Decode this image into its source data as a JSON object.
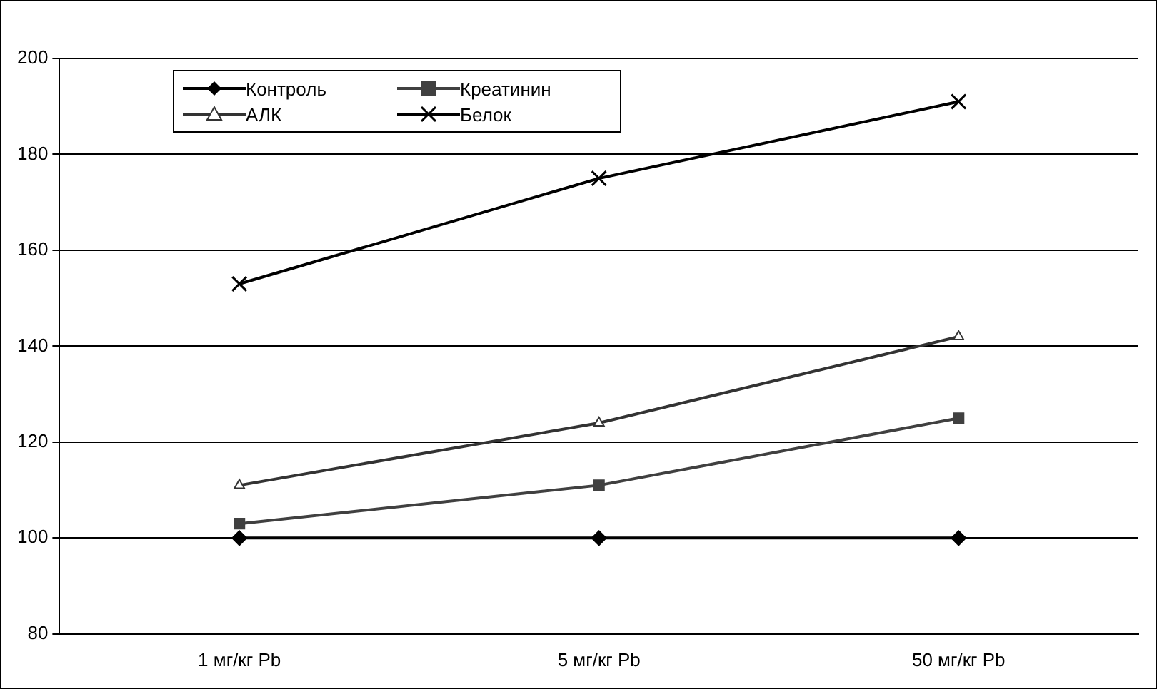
{
  "chart_data": {
    "type": "line",
    "categories": [
      "1 мг/кг Pb",
      "5 мг/кг Pb",
      "50 мг/кг Pb"
    ],
    "series": [
      {
        "name": "Контроль",
        "color": "#000000",
        "marker": "diamond",
        "values": [
          100,
          100,
          100
        ]
      },
      {
        "name": "Креатинин",
        "color": "#404040",
        "marker": "square",
        "values": [
          103,
          111,
          125
        ]
      },
      {
        "name": "АЛК",
        "color": "#333333",
        "marker": "triangle",
        "values": [
          111,
          124,
          142
        ]
      },
      {
        "name": "Белок",
        "color": "#000000",
        "marker": "cross",
        "values": [
          153,
          175,
          191
        ]
      }
    ],
    "ylim": [
      80,
      200
    ],
    "yticks": [
      80,
      100,
      120,
      140,
      160,
      180,
      200
    ],
    "grid": "y",
    "legend": "top left",
    "line_style": "solid"
  }
}
